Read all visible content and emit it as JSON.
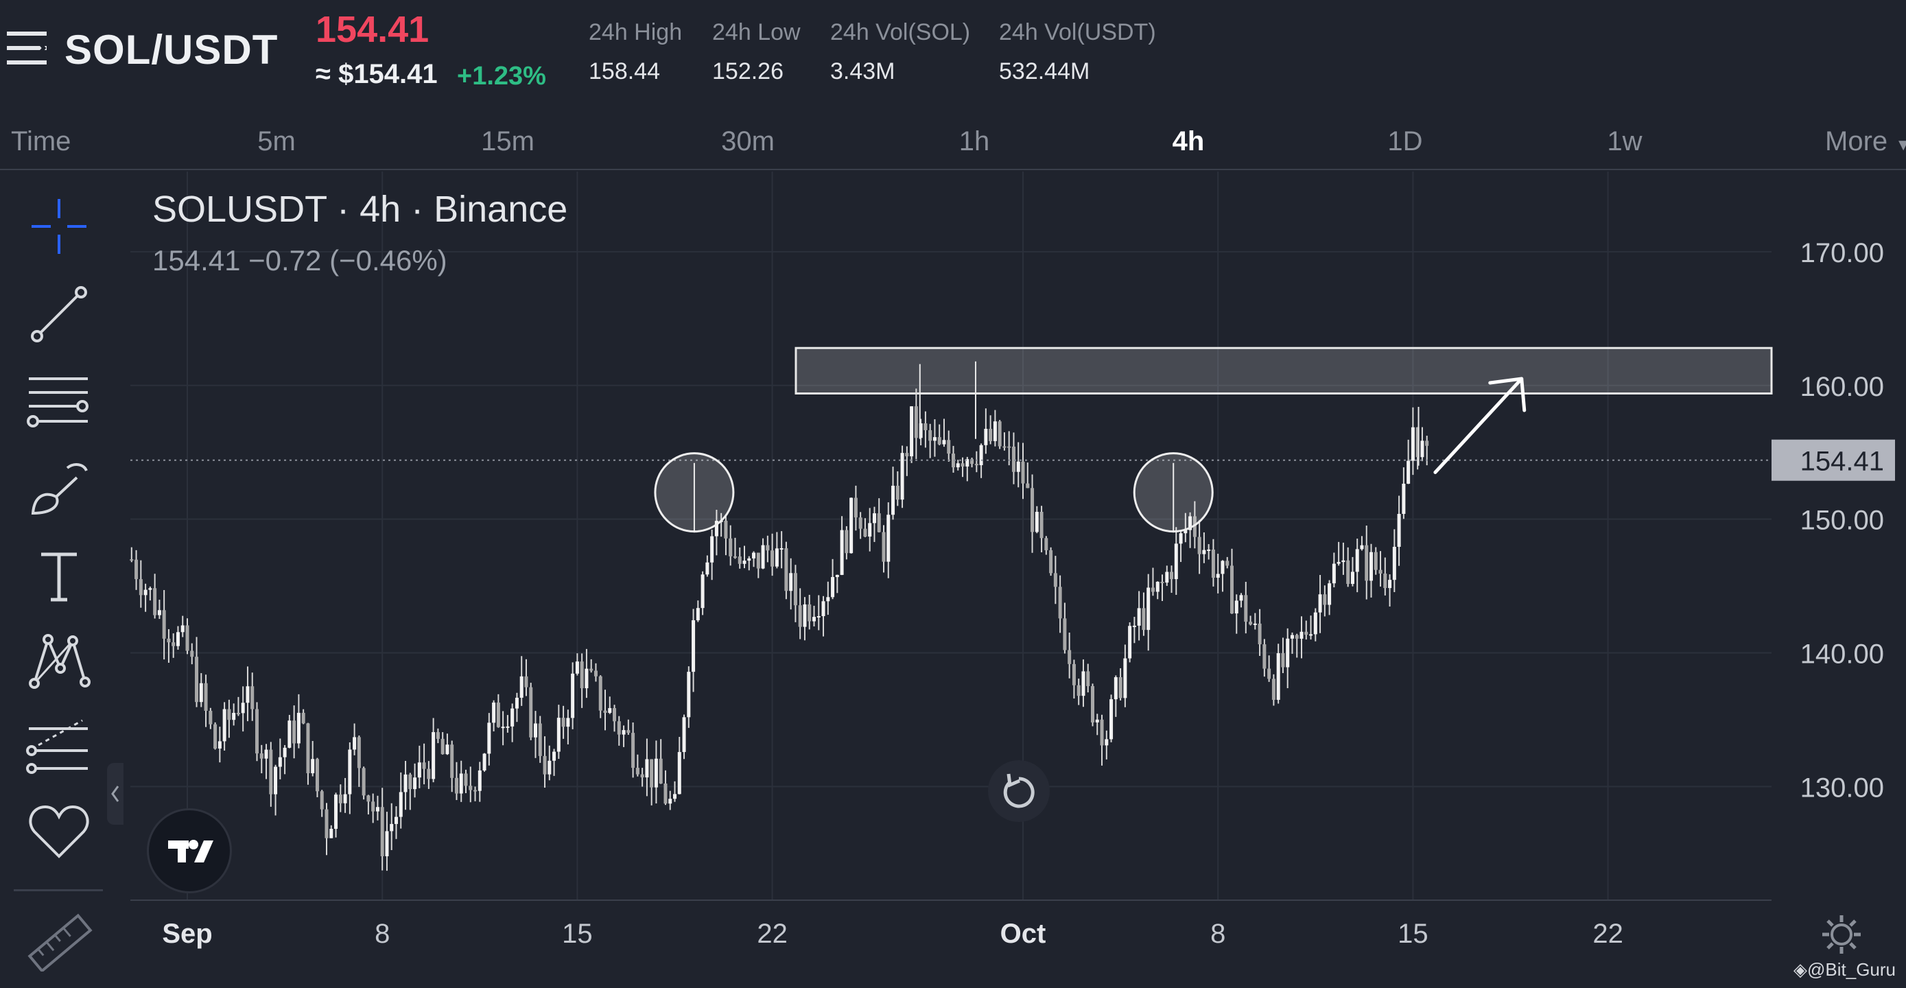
{
  "header": {
    "pair": "SOL/USDT",
    "price": "154.41",
    "usd_price": "≈ $154.41",
    "change": "+1.23%",
    "stats": [
      {
        "label": "24h High",
        "value": "158.44"
      },
      {
        "label": "24h Low",
        "value": "152.26"
      },
      {
        "label": "24h Vol(SOL)",
        "value": "3.43M"
      },
      {
        "label": "24h Vol(USDT)",
        "value": "532.44M"
      }
    ]
  },
  "tabs": [
    "Time",
    "5m",
    "15m",
    "30m",
    "1h",
    "4h",
    "1D",
    "1w",
    "More"
  ],
  "active_tab": "4h",
  "legend": {
    "title": "SOLUSDT · 4h · Binance",
    "values": "154.41  −0.72 (−0.46%)"
  },
  "tools": [
    "crosshair-icon",
    "trend-line-icon",
    "fib-lines-icon",
    "brush-icon",
    "text-icon",
    "pattern-icon",
    "forecast-icon",
    "heart-icon",
    "ruler-icon"
  ],
  "colors": {
    "background": "#1f232d",
    "price_red": "#f0465f",
    "change_green": "#2ebd85",
    "candle": "#e8e8e8",
    "accent_blue": "#2962ff"
  },
  "watermark": "@Bit_Guru",
  "chart_data": {
    "type": "candlestick",
    "price_label": "154.41",
    "y_ticks": [
      "170.00",
      "160.00",
      "150.00",
      "140.00",
      "130.00"
    ],
    "ylim": [
      121.5,
      176
    ],
    "x_ticks": [
      "Sep",
      "8",
      "15",
      "22",
      "Oct",
      "8",
      "15",
      "22"
    ],
    "x_tick_days": [
      1,
      8,
      15,
      22,
      31,
      38,
      45,
      52
    ],
    "grid": true,
    "resistance_zone": [
      159.4,
      162.8
    ],
    "marked_highs": [
      {
        "day": 19.2,
        "price": 152
      },
      {
        "day": 36.4,
        "price": 152
      }
    ],
    "arrow": {
      "from": {
        "day": 45.8,
        "price": 153.5
      },
      "to": {
        "day": 48.9,
        "price": 160.5
      }
    },
    "close_path": [
      [
        -1,
        147
      ],
      [
        0,
        143
      ],
      [
        1,
        140
      ],
      [
        2,
        133
      ],
      [
        3,
        137
      ],
      [
        4,
        131
      ],
      [
        5,
        135
      ],
      [
        6,
        127
      ],
      [
        7,
        133
      ],
      [
        8,
        126
      ],
      [
        9,
        130
      ],
      [
        10,
        133
      ],
      [
        11,
        129
      ],
      [
        12,
        135
      ],
      [
        13,
        137
      ],
      [
        14,
        131
      ],
      [
        15,
        139
      ],
      [
        16,
        136
      ],
      [
        17,
        133
      ],
      [
        18,
        130
      ],
      [
        18.5,
        128
      ],
      [
        19,
        140
      ],
      [
        19.5,
        147
      ],
      [
        20,
        150
      ],
      [
        21,
        146
      ],
      [
        22,
        148
      ],
      [
        23,
        143
      ],
      [
        24,
        145
      ],
      [
        25,
        151
      ],
      [
        26,
        148
      ],
      [
        27,
        157
      ],
      [
        28,
        155
      ],
      [
        29,
        155
      ],
      [
        30,
        156
      ],
      [
        31,
        153
      ],
      [
        32,
        145
      ],
      [
        33,
        138
      ],
      [
        34,
        134
      ],
      [
        35,
        142
      ],
      [
        36,
        145
      ],
      [
        37,
        150
      ],
      [
        38,
        146
      ],
      [
        39,
        143
      ],
      [
        40,
        138
      ],
      [
        41,
        141
      ],
      [
        42,
        146
      ],
      [
        43,
        147
      ],
      [
        44,
        146
      ],
      [
        44.5,
        149
      ],
      [
        45,
        157
      ],
      [
        45.5,
        154
      ]
    ]
  }
}
